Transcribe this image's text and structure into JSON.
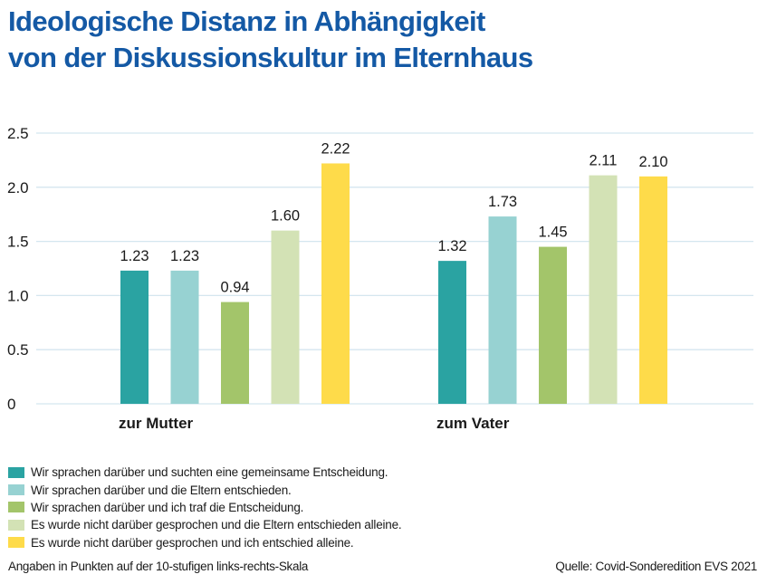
{
  "title": {
    "line1": "Ideologische Distanz in Abhängigkeit",
    "line2": "von der Diskussionskultur im Elternhaus"
  },
  "chart_data": {
    "type": "bar",
    "title": "Ideologische Distanz in Abhängigkeit von der Diskussionskultur im Elternhaus",
    "xlabel": "",
    "ylabel": "",
    "ylim": [
      0,
      2.5
    ],
    "yticks": [
      0,
      0.5,
      1.0,
      1.5,
      2.0,
      2.5
    ],
    "ytick_labels": [
      "0",
      "0.5",
      "1.0",
      "1.5",
      "2.0",
      "2.5"
    ],
    "grid": true,
    "legend_position": "bottom-left",
    "categories": [
      "zur Mutter",
      "zum Vater"
    ],
    "series": [
      {
        "name": "Wir sprachen darüber und suchten eine gemeinsame Entscheidung.",
        "color": "#2aa3a2",
        "values": [
          1.23,
          1.32
        ],
        "labels": [
          "1.23",
          "1.32"
        ]
      },
      {
        "name": "Wir sprachen darüber und die Eltern entschieden.",
        "color": "#97d2d2",
        "values": [
          1.23,
          1.73
        ],
        "labels": [
          "1.23",
          "1.73"
        ]
      },
      {
        "name": "Wir sprachen darüber und ich traf die Entscheidung.",
        "color": "#a3c56a",
        "values": [
          0.94,
          1.45
        ],
        "labels": [
          "0.94",
          "1.45"
        ]
      },
      {
        "name": "Es wurde nicht darüber gesprochen und die Eltern entschieden alleine.",
        "color": "#d3e2b5",
        "values": [
          1.6,
          2.11
        ],
        "labels": [
          "1.60",
          "2.11"
        ]
      },
      {
        "name": "Es wurde nicht darüber gesprochen und ich entschied alleine.",
        "color": "#fedb4a",
        "values": [
          2.22,
          2.1
        ],
        "labels": [
          "2.22",
          "2.10"
        ]
      }
    ]
  },
  "footnote": "Angaben in Punkten auf der 10-stufigen links-rechts-Skala",
  "source": "Quelle: Covid-Sonderedition EVS 2021",
  "colors": {
    "title": "#1459a5",
    "grid": "#d4e6ef",
    "text": "#1a1a1a"
  }
}
